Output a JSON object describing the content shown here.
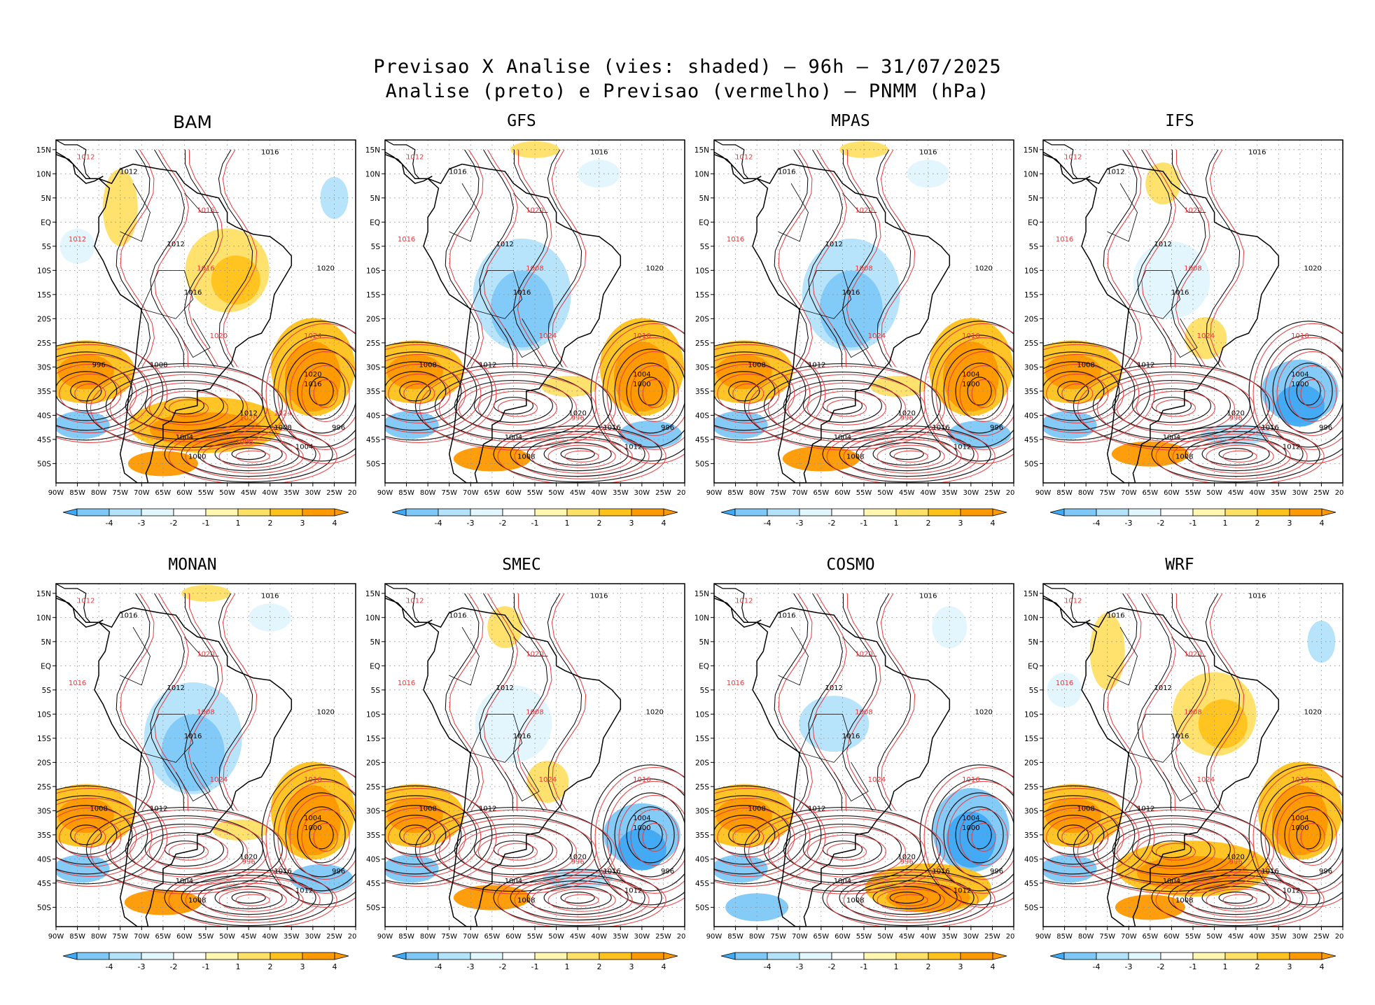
{
  "title": {
    "line1": "Previsao X Analise (vies: shaded) – 96h – 31/07/2025",
    "line2": "Analise (preto) e Previsao (vermelho) – PNMM (hPa)"
  },
  "lat_labels": [
    "15N",
    "10N",
    "5N",
    "EQ",
    "5S",
    "10S",
    "15S",
    "20S",
    "25S",
    "30S",
    "35S",
    "40S",
    "45S",
    "50S"
  ],
  "lon_labels": [
    "90W",
    "85W",
    "80W",
    "75W",
    "70W",
    "65W",
    "60W",
    "55W",
    "50W",
    "45W",
    "40W",
    "35W",
    "30W",
    "25W",
    "20W"
  ],
  "colorbar": {
    "labels": [
      "-4",
      "-3",
      "-2",
      "-1",
      "1",
      "2",
      "3",
      "4"
    ],
    "colors": [
      "#3fa9f5",
      "#7ec8f7",
      "#b3e3fb",
      "#e1f6fd",
      "#ffffff",
      "#fff7b0",
      "#ffe066",
      "#ffc21a",
      "#ff9900"
    ]
  },
  "colors": {
    "analysis_line": "#000000",
    "forecast_line": "#e8383b",
    "land_coast": "#000000",
    "grid": "#8a8a8a"
  },
  "panels": [
    {
      "name": "BAM",
      "bias": "warm",
      "labels_black": [
        "1016",
        "1012",
        "1012",
        "1016",
        "1020",
        "1008",
        "996",
        "1004",
        "1000",
        "1020",
        "1016",
        "1012",
        "1008",
        "1004",
        "996"
      ],
      "labels_red": [
        "1012",
        "1012",
        "1016",
        "1020",
        "1024",
        "1016",
        "1020",
        "1024",
        "1008"
      ]
    },
    {
      "name": "GFS",
      "bias": "cold",
      "labels_black": [
        "1016",
        "1016",
        "1012",
        "1016",
        "1020",
        "1012",
        "1008",
        "1004",
        "1008",
        "1004",
        "1000",
        "1020",
        "1016",
        "1012",
        "996"
      ],
      "labels_red": [
        "1012",
        "1016",
        "1020",
        "1024",
        "1016",
        "1008",
        "996"
      ]
    },
    {
      "name": "MPAS",
      "bias": "cold",
      "labels_black": [
        "1016",
        "1016",
        "1012",
        "1016",
        "1020",
        "1012",
        "1008",
        "1004",
        "1008",
        "1004",
        "1000",
        "1020",
        "1016",
        "1012",
        "996"
      ],
      "labels_red": [
        "1012",
        "1016",
        "1020",
        "1024",
        "1016",
        "1008",
        "996"
      ]
    },
    {
      "name": "IFS",
      "bias": "mixed",
      "labels_black": [
        "1016",
        "1012",
        "1012",
        "1016",
        "1020",
        "1012",
        "1008",
        "1004",
        "1008",
        "1004",
        "1000",
        "1020",
        "1016",
        "1012",
        "996"
      ],
      "labels_red": [
        "1012",
        "1016",
        "1020",
        "1024",
        "1016",
        "1008",
        "996"
      ]
    },
    {
      "name": "MONAN",
      "bias": "cold",
      "labels_black": [
        "1016",
        "1016",
        "1012",
        "1016",
        "1020",
        "1012",
        "1008",
        "1004",
        "1008",
        "1004",
        "1000",
        "1020",
        "1016",
        "1012",
        "996"
      ],
      "labels_red": [
        "1012",
        "1016",
        "1020",
        "1024",
        "1016",
        "1008",
        "996"
      ]
    },
    {
      "name": "SMEC",
      "bias": "mixed",
      "labels_black": [
        "1016",
        "1016",
        "1012",
        "1016",
        "1020",
        "1012",
        "1008",
        "1004",
        "1008",
        "1004",
        "1000",
        "1020",
        "1016",
        "1012",
        "996"
      ],
      "labels_red": [
        "1012",
        "1016",
        "1020",
        "1024",
        "1016",
        "1008",
        "996"
      ]
    },
    {
      "name": "COSMO",
      "bias": "strongcold",
      "labels_black": [
        "1016",
        "1016",
        "1012",
        "1016",
        "1020",
        "1012",
        "1008",
        "1004",
        "1008",
        "1004",
        "1000",
        "1020",
        "1016",
        "1012",
        "996"
      ],
      "labels_red": [
        "1012",
        "1016",
        "1020",
        "1024",
        "1016",
        "1008",
        "996"
      ]
    },
    {
      "name": "WRF",
      "bias": "warm",
      "labels_black": [
        "1016",
        "1016",
        "1012",
        "1016",
        "1020",
        "1012",
        "1008",
        "1004",
        "1008",
        "1004",
        "1000",
        "1020",
        "1016",
        "1012",
        "996"
      ],
      "labels_red": [
        "1012",
        "1016",
        "1020",
        "1024",
        "1016",
        "1008",
        "996"
      ]
    }
  ]
}
